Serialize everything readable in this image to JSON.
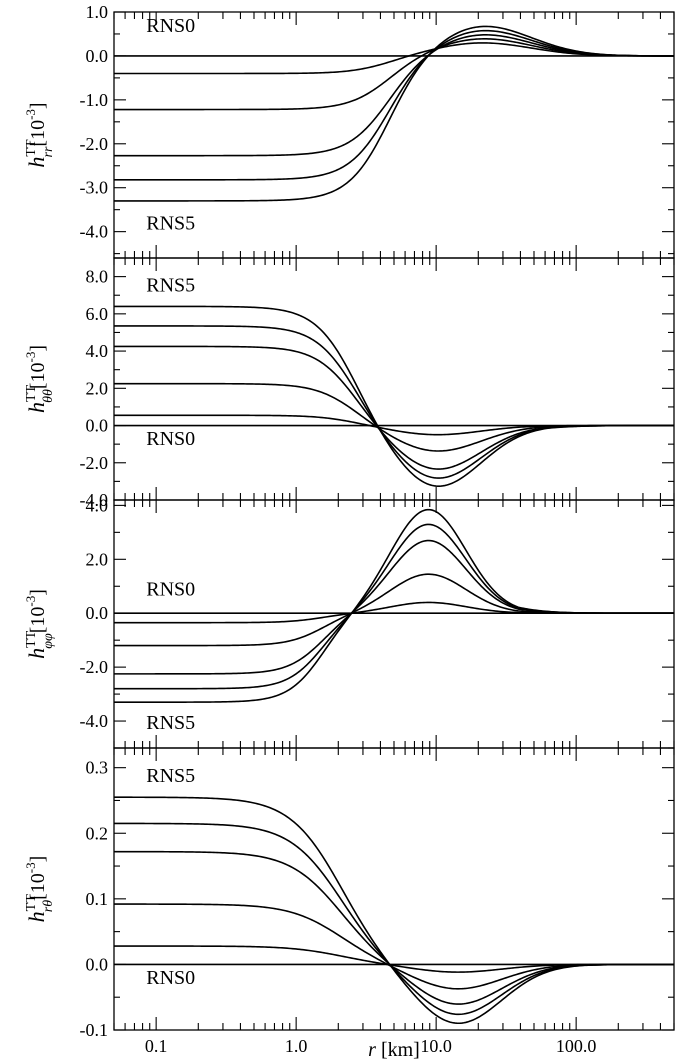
{
  "chart_data": [
    {
      "type": "line",
      "id": "hrr",
      "ylabel": {
        "base": "h",
        "sup": "TT",
        "sub": "rr",
        "unit_pre": "[10",
        "unit_exp": "-3",
        "unit_post": "]"
      },
      "xscale": "log",
      "xlim": [
        0.05,
        500
      ],
      "ylim": [
        -4.6,
        1.0
      ],
      "yticks": [
        -4.0,
        -3.0,
        -2.0,
        -1.0,
        0.0,
        1.0
      ],
      "ytick_labels": [
        "-4.0",
        "-3.0",
        "-2.0",
        "-1.0",
        "0.0",
        "1.0"
      ],
      "yminor": 0.5,
      "annotations": [
        {
          "text": "RNS0",
          "x": 0.085,
          "y": 0.55
        },
        {
          "text": "RNS5",
          "x": 0.085,
          "y": -3.95
        }
      ],
      "model": {
        "type": "step_bump",
        "r0": 4.5,
        "k": 3.0,
        "rp": 21,
        "w": 0.5,
        "rd": 55
      },
      "series": [
        {
          "plateau": 0.0,
          "peak": 0.0
        },
        {
          "plateau": -0.4,
          "peak": 0.3
        },
        {
          "plateau": -1.22,
          "peak": 0.4
        },
        {
          "plateau": -2.27,
          "peak": 0.5
        },
        {
          "plateau": -2.82,
          "peak": 0.6
        },
        {
          "plateau": -3.3,
          "peak": 0.7
        }
      ]
    },
    {
      "type": "line",
      "id": "htt",
      "ylabel": {
        "base": "h",
        "sup": "TT",
        "sub": "θθ",
        "unit_pre": "[10",
        "unit_exp": "-3",
        "unit_post": "]"
      },
      "xscale": "log",
      "xlim": [
        0.05,
        500
      ],
      "ylim": [
        -4.0,
        9.0
      ],
      "yticks": [
        -4.0,
        -2.0,
        0.0,
        2.0,
        4.0,
        6.0,
        8.0
      ],
      "ytick_labels": [
        "-4.0",
        "-2.0",
        "0.0",
        "2.0",
        "4.0",
        "6.0",
        "8.0"
      ],
      "yminor": 1.0,
      "annotations": [
        {
          "text": "RNS5",
          "x": 0.085,
          "y": 7.2
        },
        {
          "text": "RNS0",
          "x": 0.085,
          "y": -1.05
        }
      ],
      "model": {
        "type": "step_bump",
        "r0": 2.5,
        "k": 3.0,
        "rp": 10,
        "w": 0.45,
        "rd": 35
      },
      "series": [
        {
          "plateau": 0.0,
          "peak": 0.0
        },
        {
          "plateau": 0.55,
          "peak": -0.5
        },
        {
          "plateau": 2.25,
          "peak": -1.4
        },
        {
          "plateau": 4.25,
          "peak": -2.4
        },
        {
          "plateau": 5.35,
          "peak": -2.9
        },
        {
          "plateau": 6.4,
          "peak": -3.35
        }
      ]
    },
    {
      "type": "line",
      "id": "hpp",
      "ylabel": {
        "base": "h",
        "sup": "TT",
        "sub": "φφ",
        "unit_pre": "[10",
        "unit_exp": "-3",
        "unit_post": "]"
      },
      "xscale": "log",
      "xlim": [
        0.05,
        500
      ],
      "ylim": [
        -5.0,
        4.2
      ],
      "yticks": [
        -4.0,
        -2.0,
        0.0,
        2.0,
        4.0
      ],
      "ytick_labels": [
        "-4.0",
        "-2.0",
        "0.0",
        "2.0",
        "4.0"
      ],
      "yminor": 1.0,
      "annotations": [
        {
          "text": "RNS0",
          "x": 0.085,
          "y": 0.65
        },
        {
          "text": "RNS5",
          "x": 0.085,
          "y": -4.3
        }
      ],
      "model": {
        "type": "step_bump",
        "r0": 1.5,
        "k": 3.5,
        "rp": 8.8,
        "w": 0.38,
        "rd": 25
      },
      "series": [
        {
          "plateau": 0.0,
          "peak": 0.0
        },
        {
          "plateau": -0.35,
          "peak": 0.4
        },
        {
          "plateau": -1.2,
          "peak": 1.45
        },
        {
          "plateau": -2.25,
          "peak": 2.7
        },
        {
          "plateau": -2.8,
          "peak": 3.3
        },
        {
          "plateau": -3.3,
          "peak": 3.85
        }
      ]
    },
    {
      "type": "line",
      "id": "hrt",
      "ylabel": {
        "base": "h",
        "sup": "TT",
        "sub": "rθ",
        "unit_pre": "[10",
        "unit_exp": "-3",
        "unit_post": "]"
      },
      "xlabel": {
        "var": "r",
        "unit": " [km]"
      },
      "xscale": "log",
      "xlim": [
        0.05,
        500
      ],
      "ylim": [
        -0.1,
        0.33
      ],
      "yticks": [
        -0.1,
        0.0,
        0.1,
        0.2,
        0.3
      ],
      "ytick_labels": [
        "-0.1",
        "0.0",
        "0.1",
        "0.2",
        "0.3"
      ],
      "xticks": [
        0.1,
        1.0,
        10.0,
        100.0
      ],
      "xtick_labels": [
        "0.1",
        "1.0",
        "10.0",
        "100.0"
      ],
      "yminor": 0.05,
      "annotations": [
        {
          "text": "RNS5",
          "x": 0.085,
          "y": 0.278
        },
        {
          "text": "RNS0",
          "x": 0.085,
          "y": -0.03
        }
      ],
      "model": {
        "type": "step_bump",
        "r0": 2.0,
        "k": 2.4,
        "rp": 14,
        "w": 0.45,
        "rd": 40
      },
      "series": [
        {
          "plateau": 0.0,
          "peak": 0.0
        },
        {
          "plateau": 0.028,
          "peak": -0.012
        },
        {
          "plateau": 0.092,
          "peak": -0.038
        },
        {
          "plateau": 0.172,
          "peak": -0.062
        },
        {
          "plateau": 0.215,
          "peak": -0.078
        },
        {
          "plateau": 0.255,
          "peak": -0.092
        }
      ]
    }
  ]
}
